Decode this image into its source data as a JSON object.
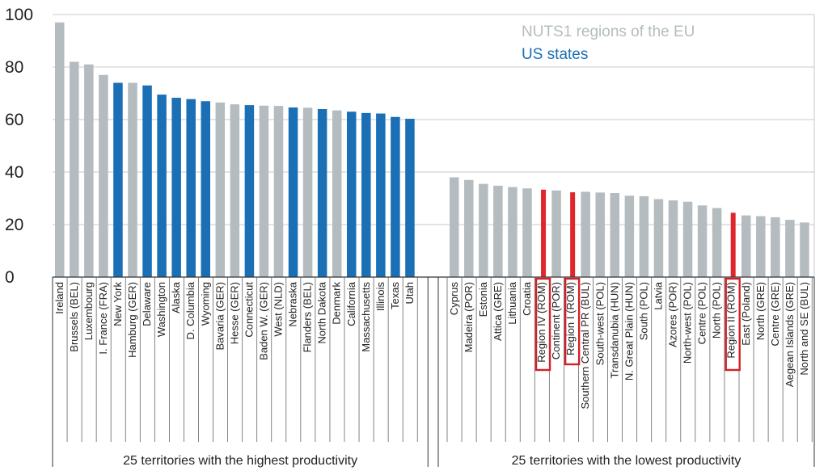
{
  "chart_data": {
    "type": "bar",
    "ylim": [
      0,
      100
    ],
    "yticks": [
      "0",
      "20",
      "40",
      "60",
      "80",
      "100"
    ],
    "grid": true,
    "legend_position": "top-right",
    "legend": [
      {
        "label": "NUTS1 regions of the EU",
        "color": "#b4bcc0"
      },
      {
        "label": "US states",
        "color": "#1a6fb5"
      }
    ],
    "colors": {
      "EU": "#b4bcc0",
      "US": "#1a6fb5",
      "ROM": "#e0262d",
      "box": "#d42027"
    },
    "groups": [
      {
        "label": "25 territories with the highest productivity",
        "bars": [
          {
            "name": "Ireland",
            "value": 97,
            "kind": "EU"
          },
          {
            "name": "Brussels (BEL)",
            "value": 82,
            "kind": "EU"
          },
          {
            "name": "Luxembourg",
            "value": 81,
            "kind": "EU"
          },
          {
            "name": "I. France (FRA)",
            "value": 77,
            "kind": "EU"
          },
          {
            "name": "New York",
            "value": 74,
            "kind": "US"
          },
          {
            "name": "Hamburg (GER)",
            "value": 74,
            "kind": "EU"
          },
          {
            "name": "Delaware",
            "value": 73,
            "kind": "US"
          },
          {
            "name": "Washington",
            "value": 69.5,
            "kind": "US"
          },
          {
            "name": "Alaska",
            "value": 68.3,
            "kind": "US"
          },
          {
            "name": "D. Columbia",
            "value": 67.8,
            "kind": "US"
          },
          {
            "name": "Wyoming",
            "value": 67,
            "kind": "US"
          },
          {
            "name": "Bavaria (GER)",
            "value": 66.5,
            "kind": "EU"
          },
          {
            "name": "Hesse (GER)",
            "value": 65.8,
            "kind": "EU"
          },
          {
            "name": "Connecticut",
            "value": 65.5,
            "kind": "US"
          },
          {
            "name": "Baden W. (GER)",
            "value": 65.3,
            "kind": "EU"
          },
          {
            "name": "West (NLD)",
            "value": 65.2,
            "kind": "EU"
          },
          {
            "name": "Nebraska",
            "value": 64.6,
            "kind": "US"
          },
          {
            "name": "Flanders (BEL)",
            "value": 64.5,
            "kind": "EU"
          },
          {
            "name": "North Dakota",
            "value": 64,
            "kind": "US"
          },
          {
            "name": "Denmark",
            "value": 63.5,
            "kind": "EU"
          },
          {
            "name": "California",
            "value": 63,
            "kind": "US"
          },
          {
            "name": "Massachusetts",
            "value": 62.5,
            "kind": "US"
          },
          {
            "name": "Illinois",
            "value": 62.3,
            "kind": "US"
          },
          {
            "name": "Texas",
            "value": 61,
            "kind": "US"
          },
          {
            "name": "Utah",
            "value": 60.3,
            "kind": "US"
          }
        ]
      },
      {
        "label": "25 territories with the lowest productivity",
        "bars": [
          {
            "name": "Cyprus",
            "value": 38,
            "kind": "EU"
          },
          {
            "name": "Madeira (POR)",
            "value": 37,
            "kind": "EU"
          },
          {
            "name": "Estonia",
            "value": 35.5,
            "kind": "EU"
          },
          {
            "name": "Attica (GRE)",
            "value": 34.8,
            "kind": "EU"
          },
          {
            "name": "Lithuania",
            "value": 34.3,
            "kind": "EU"
          },
          {
            "name": "Croatia",
            "value": 33.8,
            "kind": "EU"
          },
          {
            "name": "Region IV (ROM)",
            "value": 33.3,
            "kind": "ROM",
            "boxed": true
          },
          {
            "name": "Continent (POR)",
            "value": 33,
            "kind": "EU"
          },
          {
            "name": "Region I (ROM)",
            "value": 32.3,
            "kind": "ROM",
            "boxed": true
          },
          {
            "name": "Southern Central PR (BUL)",
            "value": 32.5,
            "kind": "EU"
          },
          {
            "name": "South-west (POL)",
            "value": 32.2,
            "kind": "EU"
          },
          {
            "name": "Transdanubia (HUN)",
            "value": 32,
            "kind": "EU"
          },
          {
            "name": "N. Great Plain (HUN)",
            "value": 31,
            "kind": "EU"
          },
          {
            "name": "South (POL)",
            "value": 30.8,
            "kind": "EU"
          },
          {
            "name": "Latvia",
            "value": 29.7,
            "kind": "EU"
          },
          {
            "name": "Azores (POR)",
            "value": 29.2,
            "kind": "EU"
          },
          {
            "name": "North-west (POL)",
            "value": 28.7,
            "kind": "EU"
          },
          {
            "name": "Centre (POL)",
            "value": 27.3,
            "kind": "EU"
          },
          {
            "name": "North (POL)",
            "value": 26.3,
            "kind": "EU"
          },
          {
            "name": "Region II (ROM)",
            "value": 24.5,
            "kind": "ROM",
            "boxed": true
          },
          {
            "name": "East (Poland)",
            "value": 23.5,
            "kind": "EU"
          },
          {
            "name": "North (GRE)",
            "value": 23.2,
            "kind": "EU"
          },
          {
            "name": "Centre (GRE)",
            "value": 22.8,
            "kind": "EU"
          },
          {
            "name": "Aegean Islands (GRE)",
            "value": 21.8,
            "kind": "EU"
          },
          {
            "name": "North and SE (BUL)",
            "value": 20.8,
            "kind": "EU"
          }
        ]
      }
    ]
  }
}
